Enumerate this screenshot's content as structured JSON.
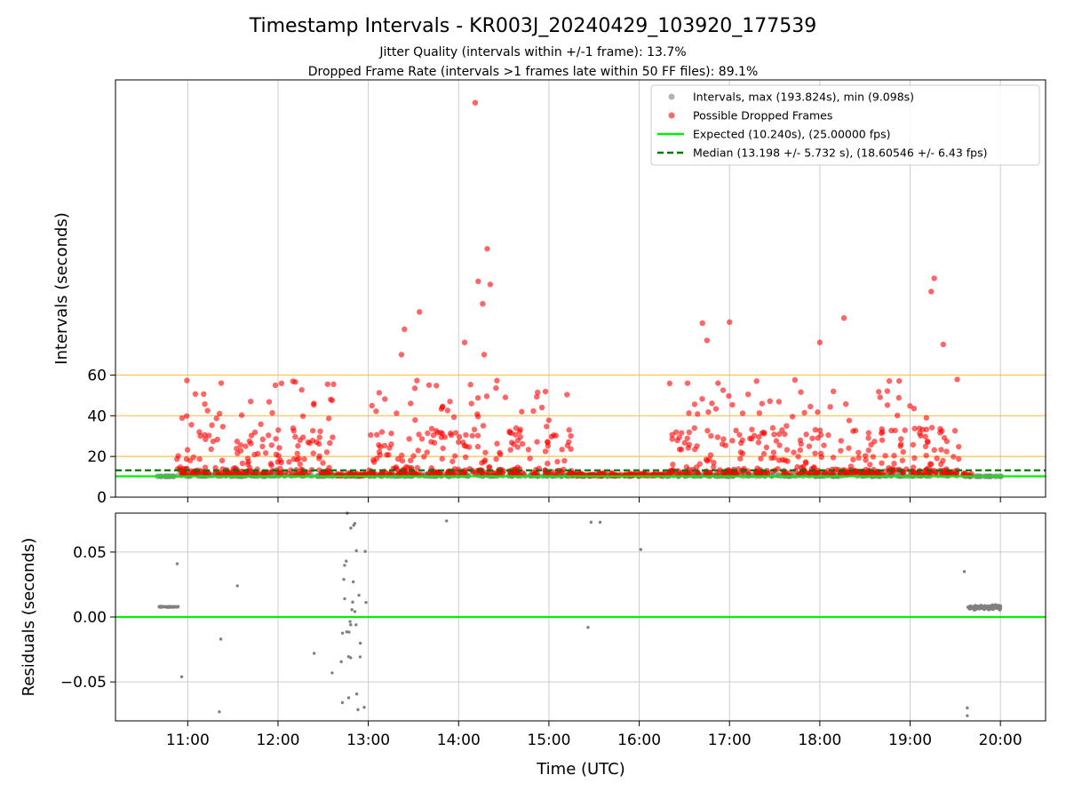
{
  "title": "Timestamp Intervals - KR003J_20240429_103920_177539",
  "subtitle_1": "Jitter Quality (intervals within +/-1 frame): 13.7%",
  "subtitle_2": "Dropped Frame Rate (intervals >1 frames late within 50 FF files): 89.1%",
  "colors": {
    "intervals": "#808080",
    "dropped": "#ff0000",
    "expected": "#00ee00",
    "median": "#007700",
    "threshold": "#ffc04d",
    "grid": "#cccccc"
  },
  "chart_data": [
    {
      "type": "scatter",
      "panel": "top",
      "ylabel": "Intervals (seconds)",
      "xlabel": "",
      "ylim": [
        0,
        205
      ],
      "yticks": [
        0,
        20,
        40,
        60
      ],
      "xlim_hours": [
        10.2,
        20.5
      ],
      "xticks": [
        "11:00",
        "12:00",
        "13:00",
        "14:00",
        "15:00",
        "16:00",
        "17:00",
        "18:00",
        "19:00",
        "20:00"
      ],
      "grid": "x-only",
      "legend_position": "top-right",
      "reference_lines": [
        {
          "name": "Expected (10.240s), (25.00000 fps)",
          "y": 10.24,
          "style": "solid"
        },
        {
          "name": "Median (13.198 +/- 5.732 s), (18.60546 +/- 6.43 fps)",
          "y": 13.198,
          "style": "dashed"
        },
        {
          "name": "",
          "y": 20,
          "style": "threshold"
        },
        {
          "name": "",
          "y": 40,
          "style": "threshold"
        },
        {
          "name": "",
          "y": 60,
          "style": "threshold"
        }
      ],
      "series": [
        {
          "name": "Intervals, max (193.824s), min (9.098s)",
          "marker": "gray-dot",
          "max": 193.824,
          "min": 9.098
        },
        {
          "name": "Possible Dropped Frames",
          "marker": "red-dot",
          "notable_points": [
            {
              "time": "14:11",
              "y": 193.8
            },
            {
              "time": "14:19",
              "y": 122.0
            },
            {
              "time": "14:13",
              "y": 106.0
            },
            {
              "time": "14:21",
              "y": 104.5
            },
            {
              "time": "14:16",
              "y": 95.0
            },
            {
              "time": "19:16",
              "y": 107.5
            },
            {
              "time": "19:14",
              "y": 101.0
            },
            {
              "time": "13:34",
              "y": 91.0
            },
            {
              "time": "13:24",
              "y": 82.5
            },
            {
              "time": "16:42",
              "y": 85.5
            },
            {
              "time": "17:00",
              "y": 86.0
            },
            {
              "time": "18:16",
              "y": 88.0
            },
            {
              "time": "18:00",
              "y": 76.0
            },
            {
              "time": "14:04",
              "y": 76.0
            },
            {
              "time": "16:45",
              "y": 77.0
            },
            {
              "time": "19:22",
              "y": 75.0
            },
            {
              "time": "13:22",
              "y": 70.0
            },
            {
              "time": "14:17",
              "y": 70.0
            }
          ]
        }
      ]
    },
    {
      "type": "scatter",
      "panel": "bottom",
      "ylabel": "Residuals (seconds)",
      "xlabel": "Time (UTC)",
      "ylim": [
        -0.08,
        0.08
      ],
      "yticks": [
        "0.05",
        "0.00",
        "−0.05"
      ],
      "xticks": [
        "11:00",
        "12:00",
        "13:00",
        "14:00",
        "15:00",
        "16:00",
        "17:00",
        "18:00",
        "19:00",
        "20:00"
      ],
      "grid": "both",
      "reference_lines": [
        {
          "name": "",
          "y": 0,
          "style": "solid"
        }
      ],
      "series": [
        {
          "name": "",
          "marker": "gray-dot",
          "notable_points": [
            {
              "time": "10:53",
              "y": 0.041
            },
            {
              "time": "10:56",
              "y": -0.046
            },
            {
              "time": "11:33",
              "y": 0.024
            },
            {
              "time": "11:21",
              "y": -0.073
            },
            {
              "time": "11:22",
              "y": -0.017
            },
            {
              "time": "12:24",
              "y": -0.028
            },
            {
              "time": "12:36",
              "y": -0.043
            },
            {
              "time": "12:46",
              "y": 0.08
            },
            {
              "time": "12:51",
              "y": 0.072
            },
            {
              "time": "13:52",
              "y": 0.074
            },
            {
              "time": "15:28",
              "y": 0.073
            },
            {
              "time": "15:34",
              "y": 0.073
            },
            {
              "time": "15:26",
              "y": -0.008
            },
            {
              "time": "16:01",
              "y": 0.052
            },
            {
              "time": "19:36",
              "y": 0.035
            },
            {
              "time": "19:38",
              "y": -0.07
            },
            {
              "time": "19:38",
              "y": -0.076
            }
          ]
        }
      ]
    }
  ]
}
